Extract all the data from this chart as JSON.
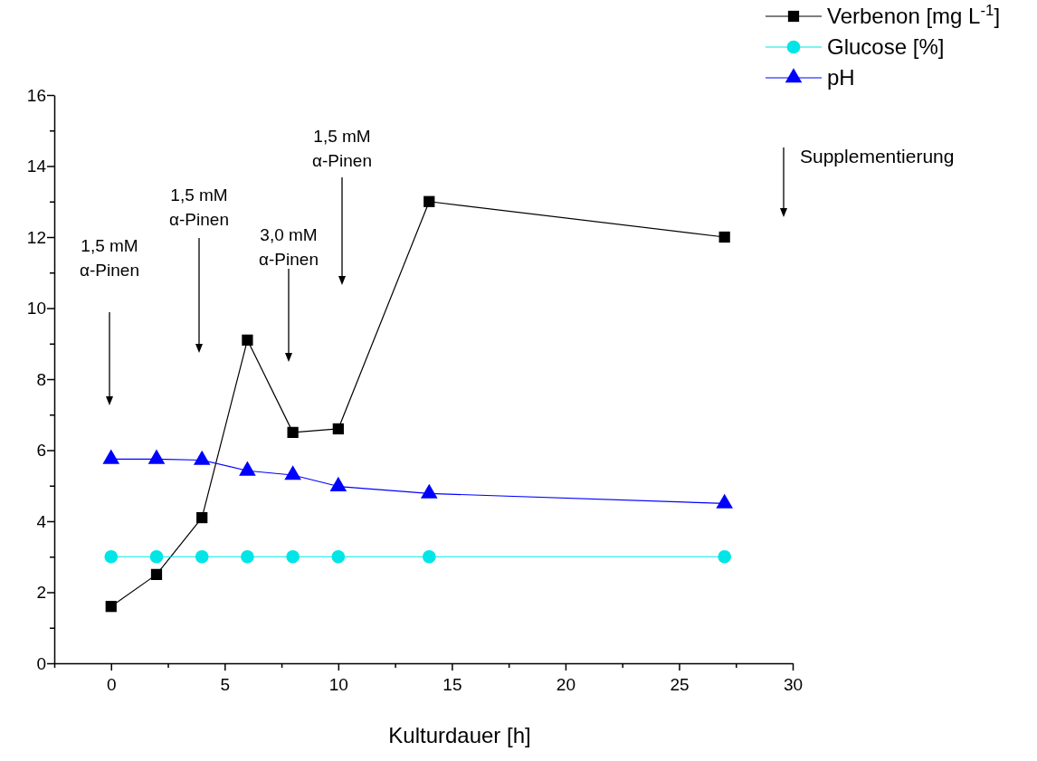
{
  "chart_data": {
    "type": "line",
    "xlabel": "Kulturdauer [h]",
    "x": [
      0,
      2,
      4,
      6,
      8,
      10,
      14,
      27
    ],
    "series": [
      {
        "name": "Verbenon [mg L$^{-1}$]",
        "color": "#000000",
        "marker": "square",
        "values": [
          1.6,
          2.5,
          4.1,
          9.1,
          6.5,
          6.6,
          13,
          12
        ]
      },
      {
        "name": "Glucose [%]",
        "color": "#00e6e6",
        "marker": "circle",
        "values": [
          3,
          3,
          3,
          3,
          3,
          3,
          3,
          3
        ]
      },
      {
        "name": "pH",
        "color": "#0000ff",
        "marker": "triangle",
        "values": [
          5.75,
          5.75,
          5.72,
          5.42,
          5.3,
          4.98,
          4.78,
          4.5
        ]
      }
    ],
    "xlim": [
      -2.5,
      30
    ],
    "xticks": [
      {
        "value": -2.5,
        "label": null
      },
      0,
      {
        "value": 2.5,
        "label": null
      },
      5,
      {
        "value": 7.5,
        "label": null
      },
      10,
      {
        "value": 12.5,
        "label": null
      },
      15,
      {
        "value": 17.5,
        "label": null
      },
      20,
      {
        "value": 22.5,
        "label": null
      },
      25,
      {
        "value": 27.5,
        "label": null
      },
      30
    ],
    "ylim": [
      0,
      16
    ],
    "yticks": [
      0,
      {
        "value": 1,
        "label": null
      },
      2,
      {
        "value": 3,
        "label": null
      },
      4,
      {
        "value": 5,
        "label": null
      },
      6,
      {
        "value": 7,
        "label": null
      },
      8,
      {
        "value": 9,
        "label": null
      },
      10,
      {
        "value": 11,
        "label": null
      },
      12,
      {
        "value": 13,
        "label": null
      },
      14,
      {
        "value": 15,
        "label": null
      },
      16
    ],
    "grid": false,
    "legend": "top right",
    "line_style": "solid",
    "annotations": [
      "1,5 mM\nα-Pinen",
      "1,5 mM\nα-Pinen",
      "3,0 mM\nα-Pinen",
      "1,5 mM\nα-Pinen",
      "Supplementierung"
    ]
  }
}
